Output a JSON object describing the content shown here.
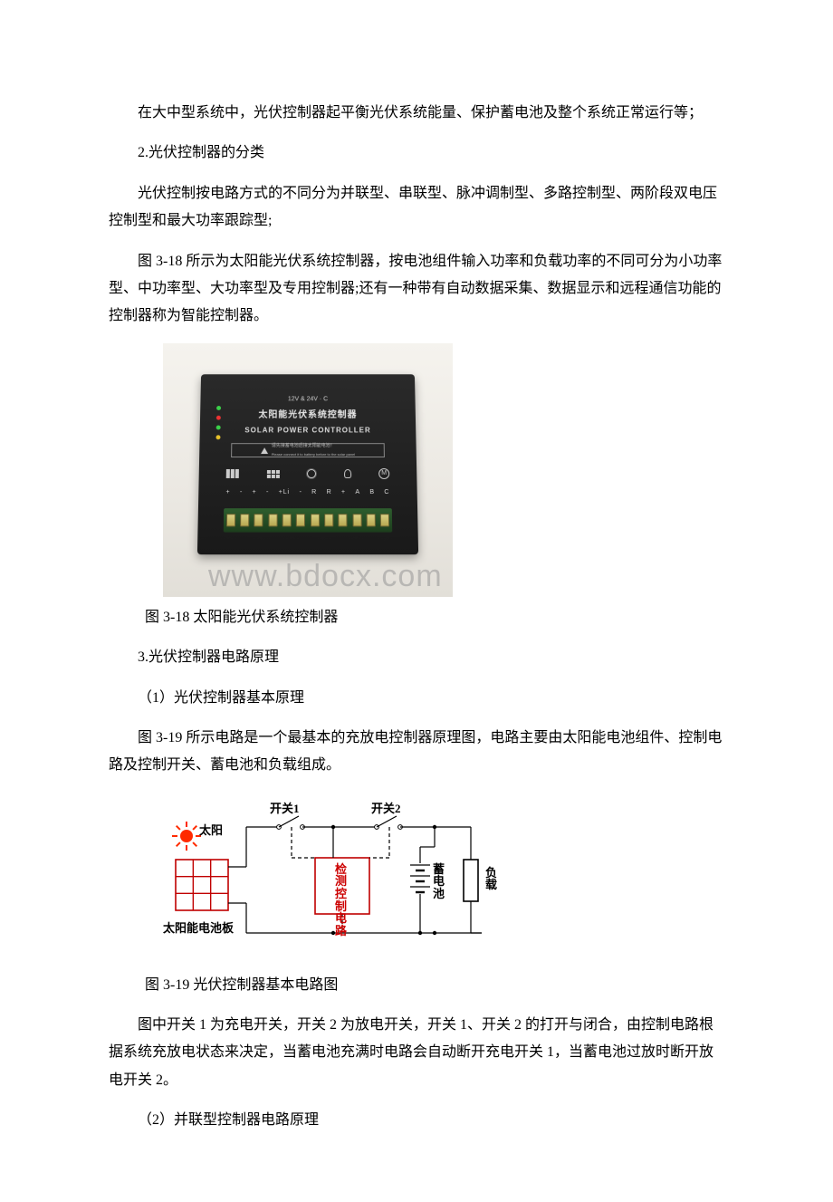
{
  "paragraphs": {
    "p1": "在大中型系统中，光伏控制器起平衡光伏系统能量、保护蓄电池及整个系统正常运行等；",
    "h2": "2.光伏控制器的分类",
    "p2": "光伏控制按电路方式的不同分为并联型、串联型、脉冲调制型、多路控制型、两阶段双电压控制型和最大功率跟踪型;",
    "p3": "图 3-18 所示为太阳能光伏系统控制器，按电池组件输入功率和负载功率的不同可分为小功率型、中功率型、大功率型及专用控制器;还有一种带有自动数据采集、数据显示和远程通信功能的控制器称为智能控制器。",
    "cap318": "图 3-18 太阳能光伏系统控制器",
    "h3": "3.光伏控制器电路原理",
    "s1": "（1）光伏控制器基本原理",
    "p4": "图 3-19 所示电路是一个最基本的充放电控制器原理图，电路主要由太阳能电池组件、控制电路及控制开关、蓄电池和负载组成。",
    "cap319": "图 3-19 光伏控制器基本电路图",
    "p5": "图中开关 1 为充电开关，开关 2 为放电开关，开关 1、开关 2 的打开与闭合，由控制电路根据系统充放电状态来决定，当蓄电池充满时电路会自动断开充电开关 1，当蓄电池过放时断开放电开关 2。",
    "s2": "（2）并联型控制器电路原理"
  },
  "fig318": {
    "watermark": "www.bdocx.com",
    "label_small": "12V & 24V · C",
    "label_cn": "太阳能光伏系统控制器",
    "label_en": "SOLAR POWER CONTROLLER",
    "warn": "请先接蓄电池后接太阳能电池！",
    "warn_en": "Please connect it to battery before to the solar panel",
    "term_labels": [
      "+",
      "-",
      "+",
      "-",
      "+Li",
      "-",
      "R",
      "R",
      "+",
      "A",
      "B",
      "C"
    ],
    "colors": {
      "bg": "#efece6",
      "box": "#1f1f1f",
      "terminal_strip": "#275727",
      "terminal": "#cbbf6a"
    }
  },
  "fig319": {
    "labels": {
      "sun": "太阳",
      "panel": "太阳能电池板",
      "sw1": "开关1",
      "sw2": "开关2",
      "control": "检测控制电路",
      "battery": "蓄电池",
      "load": "负载"
    },
    "styling": {
      "wire_color": "#000000",
      "dash_color": "#000000",
      "box_border": "#c00000",
      "sun_color": "#ff2a00",
      "stroke_width": 1.2,
      "font_size": 13
    }
  }
}
